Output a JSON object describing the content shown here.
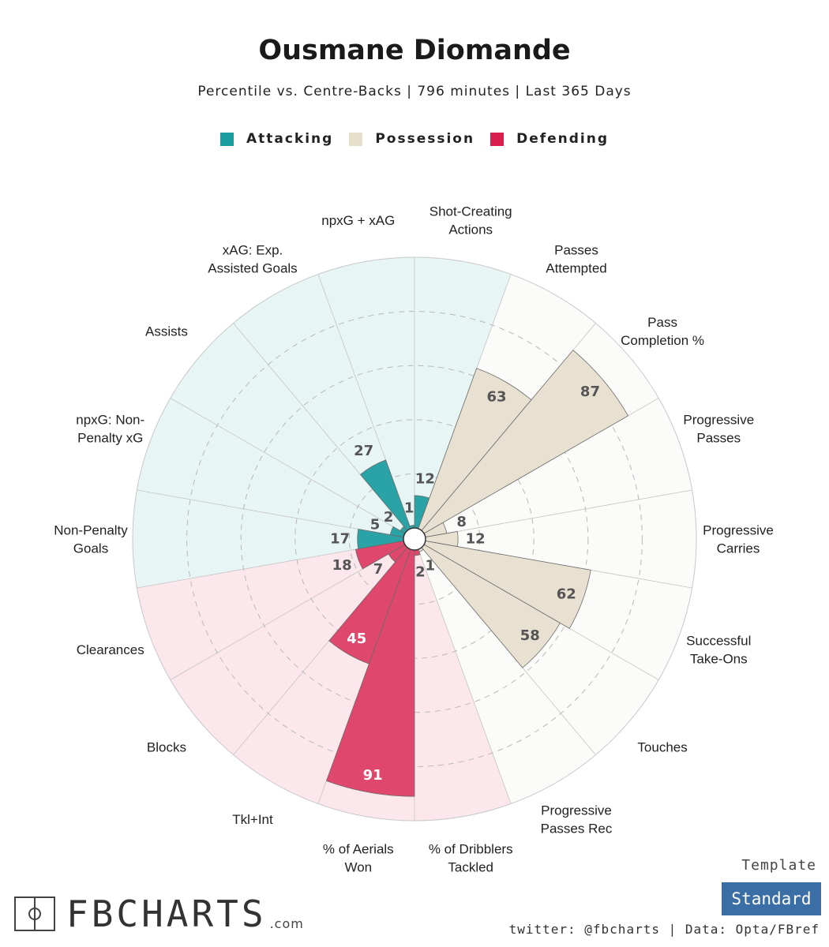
{
  "title": "Ousmane Diomande",
  "subtitle": "Percentile vs. Centre-Backs | 796 minutes | Last 365 Days",
  "legend": [
    {
      "label": "Attacking",
      "color": "#1a9c9f"
    },
    {
      "label": "Possession",
      "color": "#e6dfcc"
    },
    {
      "label": "Defending",
      "color": "#d91f4e"
    }
  ],
  "colors": {
    "attacking_bar": "#2aa3a6",
    "attacking_bg": "#e8f5f5",
    "possession_bar": "#e8e1d2",
    "possession_bg": "#fbfbf9",
    "defending_bar": "#e0476d",
    "defending_bg": "#fce8ec"
  },
  "chart_data": {
    "type": "radar-bar",
    "rlim": [
      0,
      100
    ],
    "grid_rings": [
      20,
      40,
      60,
      80
    ],
    "categories": [
      {
        "label": "Shot-Creating\nActions",
        "value": 12,
        "group": "Attacking"
      },
      {
        "label": "Passes\nAttempted",
        "value": 63,
        "group": "Possession"
      },
      {
        "label": "Pass\nCompletion %",
        "value": 87,
        "group": "Possession"
      },
      {
        "label": "Progressive\nPasses",
        "value": 8,
        "group": "Possession"
      },
      {
        "label": "Progressive\nCarries",
        "value": 12,
        "group": "Possession"
      },
      {
        "label": "Successful\nTake-Ons",
        "value": 62,
        "group": "Possession"
      },
      {
        "label": "Touches",
        "value": 58,
        "group": "Possession"
      },
      {
        "label": "Progressive\nPasses Rec",
        "value": 1,
        "group": "Possession"
      },
      {
        "label": "% of Dribblers\nTackled",
        "value": 2,
        "group": "Defending"
      },
      {
        "label": "% of Aerials\nWon",
        "value": 91,
        "group": "Defending"
      },
      {
        "label": "Tkl+Int",
        "value": 45,
        "group": "Defending"
      },
      {
        "label": "Blocks",
        "value": 7,
        "group": "Defending"
      },
      {
        "label": "Clearances",
        "value": 18,
        "group": "Defending"
      },
      {
        "label": "Non-Penalty\nGoals",
        "value": 17,
        "group": "Attacking"
      },
      {
        "label": "npxG: Non-\nPenalty xG",
        "value": 5,
        "group": "Attacking"
      },
      {
        "label": "Assists",
        "value": 2,
        "group": "Attacking"
      },
      {
        "label": "xAG: Exp.\nAssisted Goals",
        "value": 27,
        "group": "Attacking"
      },
      {
        "label": "npxG + xAG",
        "value": 1,
        "group": "Attacking"
      }
    ]
  },
  "logo": {
    "text": "FBCHARTS",
    "domain": ".com"
  },
  "template": {
    "label": "Template",
    "value": "Standard"
  },
  "credits": "twitter: @fbcharts | Data: Opta/FBref"
}
